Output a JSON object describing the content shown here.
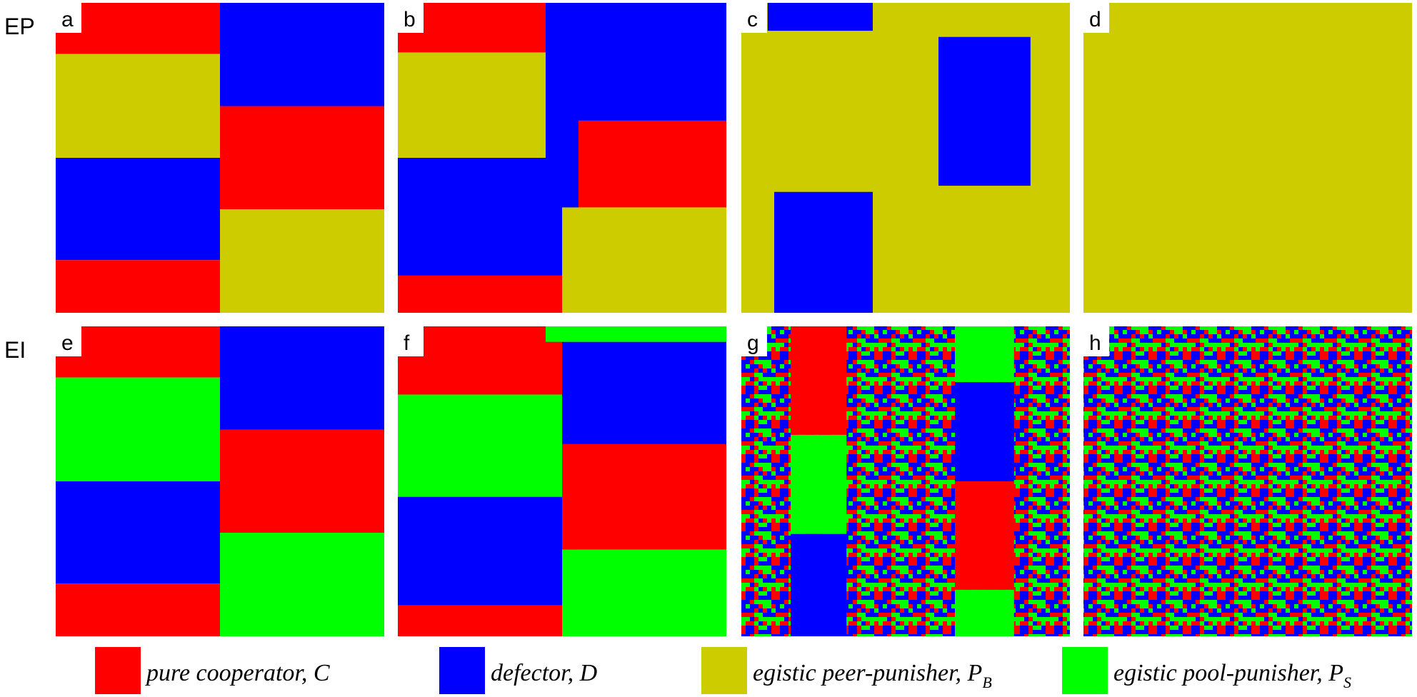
{
  "rows": [
    {
      "label": "EP",
      "panels": [
        "a",
        "b",
        "c",
        "d"
      ]
    },
    {
      "label": "EI",
      "panels": [
        "e",
        "f",
        "g",
        "h"
      ]
    }
  ],
  "legend": [
    {
      "label": "pure cooperator, C"
    },
    {
      "label": "defector, D"
    },
    {
      "label": "egistic peer-punisher, P",
      "subscript": "B"
    },
    {
      "label": "egistic pool-punisher, P",
      "subscript": "S"
    }
  ]
}
